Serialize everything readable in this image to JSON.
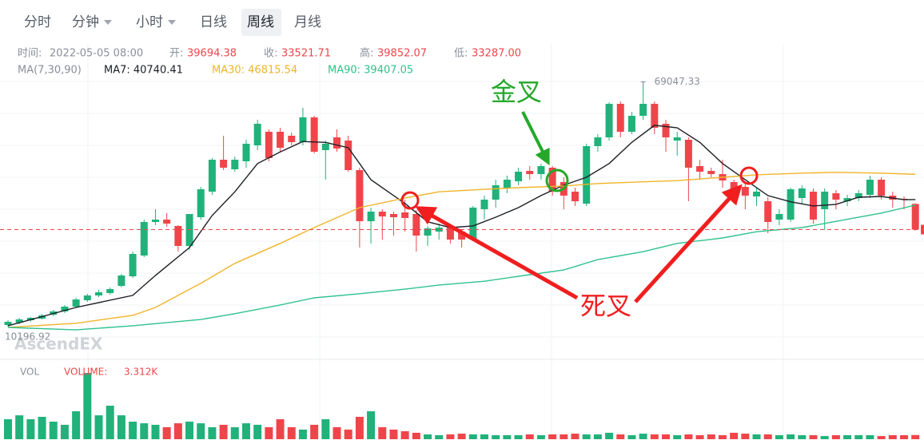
{
  "header": {
    "tabs": [
      "分时",
      "分钟",
      "小时",
      "日线",
      "周线",
      "月线"
    ],
    "active_tab": "周线",
    "dropdown_tabs": [
      "分钟",
      "小时"
    ],
    "info": [
      {
        "label": "时间:",
        "value": "2022-05-05 08:00",
        "color": "#8a8f99"
      },
      {
        "label": "开:",
        "value": "39694.38",
        "color": "#ef454a"
      },
      {
        "label": "收:",
        "value": "33521.71",
        "color": "#ef454a"
      },
      {
        "label": "高:",
        "value": "39852.07",
        "color": "#ef454a"
      },
      {
        "label": "低:",
        "value": "33287.00",
        "color": "#ef454a"
      }
    ],
    "ma_legend": {
      "label": "MA(7,30,90)",
      "items": [
        {
          "text": "MA7: 40740.41",
          "color": "#1c1f26"
        },
        {
          "text": "MA30: 46815.54",
          "color": "#f0b429"
        },
        {
          "text": "MA90: 39407.05",
          "color": "#2fc28c"
        }
      ]
    }
  },
  "chart_data": {
    "type": "candlestick",
    "watermark": "AscendEX",
    "up_color": "#20b27a",
    "down_color": "#ef454a",
    "ylim": [
      2324,
      77204
    ],
    "open": [
      10580,
      11156,
      11732,
      12116,
      13076,
      13844,
      14996,
      16532,
      17684,
      18260,
      19988,
      22292,
      27284,
      35348,
      35924,
      34388,
      29588,
      36500,
      42644,
      50324,
      48020,
      49940,
      53780,
      57044,
      57044,
      56084,
      54548,
      60500,
      52628,
      55700,
      54932,
      47828,
      35540,
      37844,
      37268,
      37652,
      37268,
      32084,
      33044,
      34004,
      33044,
      31124,
      38420,
      40724,
      43412,
      45140,
      47636,
      46868,
      48404,
      44948,
      42644,
      39764,
      53588,
      55700,
      63764,
      57044,
      60884,
      63764,
      58964,
      54932,
      55124,
      48788,
      47636,
      46868,
      44948,
      43796,
      41492,
      40340,
      35924,
      35924,
      41108,
      42644,
      38420,
      42260,
      40340,
      41108,
      41876,
      45524,
      41684,
      40940,
      39694.38
    ],
    "close": [
      11348,
      11924,
      12308,
      12884,
      13844,
      14996,
      16724,
      17684,
      18452,
      19220,
      22484,
      27668,
      35348,
      35924,
      34964,
      29588,
      37268,
      43220,
      50324,
      48404,
      50324,
      54164,
      58964,
      50708,
      53204,
      54548,
      60500,
      52244,
      54164,
      53012,
      47828,
      35540,
      37844,
      36692,
      36500,
      36308,
      32084,
      33812,
      34004,
      31124,
      31124,
      38804,
      40724,
      44180,
      45524,
      47444,
      46868,
      48788,
      42644,
      41684,
      40340,
      53588,
      55700,
      63764,
      57044,
      60884,
      63764,
      58004,
      55700,
      55700,
      48404,
      47444,
      46868,
      45332,
      42644,
      41684,
      42644,
      35348,
      37268,
      43220,
      43412,
      35924,
      42644,
      40724,
      41108,
      42260,
      45524,
      41684,
      40724,
      40724,
      33521.71
    ],
    "high": [
      11732,
      12308,
      12500,
      13268,
      14228,
      15380,
      17108,
      18068,
      19028,
      19604,
      22868,
      28244,
      35924,
      38420,
      37484,
      34580,
      37268,
      43796,
      50708,
      56084,
      51092,
      55124,
      59924,
      57620,
      58004,
      56852,
      62804,
      60884,
      54932,
      57620,
      56084,
      48404,
      38804,
      38420,
      37844,
      40724,
      38228,
      34388,
      34964,
      34580,
      33620,
      39188,
      41684,
      45524,
      46484,
      48404,
      48788,
      49364,
      48788,
      46100,
      43604,
      54164,
      56468,
      64148,
      64340,
      61844,
      69047.33,
      64340,
      59924,
      57044,
      55700,
      50324,
      48404,
      50324,
      45524,
      44948,
      43604,
      41300,
      38420,
      43604,
      44180,
      43412,
      43412,
      43028,
      41876,
      43028,
      46484,
      46100,
      42644,
      41492,
      39852.07
    ],
    "low": [
      10196.92,
      10772,
      11348,
      11924,
      12692,
      13460,
      14612,
      16148,
      17300,
      17876,
      19604,
      21908,
      26900,
      34580,
      34196,
      28244,
      28628,
      35924,
      41876,
      47828,
      47444,
      48404,
      52628,
      49940,
      52244,
      53780,
      53780,
      51860,
      45524,
      52244,
      47444,
      29204,
      30164,
      31124,
      32084,
      33044,
      28244,
      29588,
      31124,
      30164,
      29204,
      30740,
      35924,
      38804,
      42260,
      44180,
      45524,
      45524,
      41684,
      38420,
      39188,
      39188,
      52244,
      54932,
      55700,
      56468,
      59924,
      56468,
      52244,
      51284,
      40340,
      45524,
      46100,
      43604,
      41108,
      38420,
      39188,
      32660,
      34580,
      35348,
      39764,
      34964,
      33428,
      38420,
      39188,
      40340,
      41108,
      40724,
      38804,
      38420,
      33287
    ],
    "ma": [
      {
        "color": "#1c1f26",
        "x": [
          0,
          6,
          11,
          13,
          16,
          18,
          20,
          22,
          24,
          26,
          28,
          30,
          31,
          32,
          34,
          35,
          37,
          39,
          41,
          43,
          45,
          47,
          49,
          51,
          53,
          55,
          57,
          59,
          61,
          63,
          65,
          67,
          69,
          71,
          73,
          75,
          77,
          79,
          80
        ],
        "values": [
          10400,
          14800,
          17700,
          22500,
          29200,
          36900,
          42600,
          49400,
          52200,
          54700,
          54500,
          53200,
          49400,
          45500,
          41700,
          39800,
          35400,
          34000,
          34400,
          36500,
          38800,
          41700,
          44200,
          46100,
          49400,
          54500,
          58600,
          58000,
          54500,
          49400,
          45500,
          41700,
          40200,
          39200,
          39600,
          41300,
          41500,
          40700,
          40740.41
        ]
      },
      {
        "color": "#f0b429",
        "x": [
          0,
          6,
          11,
          13,
          17,
          20,
          24,
          27,
          31,
          35,
          38,
          42,
          45,
          49,
          52,
          56,
          59,
          63,
          66,
          70,
          73,
          77,
          80
        ],
        "values": [
          10000,
          11000,
          12900,
          14800,
          20600,
          25400,
          30200,
          34000,
          38800,
          41100,
          42600,
          43200,
          43600,
          44000,
          44600,
          45000,
          45300,
          46100,
          46700,
          47100,
          47300,
          47100,
          46815.54
        ]
      },
      {
        "color": "#2fc28c",
        "x": [
          0,
          6,
          11,
          17,
          20,
          24,
          27,
          31,
          35,
          38,
          42,
          45,
          49,
          52,
          56,
          59,
          63,
          66,
          70,
          73,
          77,
          80
        ],
        "values": [
          10000,
          9400,
          10400,
          11900,
          13300,
          15400,
          17100,
          18100,
          19200,
          20200,
          21100,
          22300,
          23800,
          26300,
          28200,
          30200,
          31500,
          33000,
          34000,
          35500,
          37500,
          39407.05
        ]
      }
    ],
    "volume": {
      "name": "VOL",
      "label": "VOLUME:",
      "current_label": "3.312K",
      "ylim": [
        0,
        60000
      ],
      "values": [
        15800,
        18900,
        15800,
        17700,
        13900,
        11400,
        22100,
        52400,
        18900,
        26500,
        18900,
        13900,
        12600,
        11400,
        9500,
        12600,
        13900,
        12600,
        9500,
        11400,
        9500,
        12600,
        11400,
        9500,
        15800,
        9500,
        7600,
        11400,
        15800,
        9500,
        7600,
        17700,
        22100,
        9500,
        7600,
        6300,
        5100,
        3800,
        3200,
        3800,
        4400,
        3800,
        3800,
        3200,
        3200,
        3200,
        3800,
        3200,
        3800,
        3800,
        4400,
        3800,
        3800,
        5100,
        3800,
        3200,
        4400,
        3800,
        3800,
        3200,
        3800,
        3200,
        3800,
        3200,
        5100,
        4400,
        3800,
        3800,
        3200,
        3800,
        3200,
        3200,
        2500,
        3200,
        3200,
        3200,
        3200,
        2500,
        3200,
        3200,
        3312
      ]
    },
    "annotations": {
      "golden_cross": "金叉",
      "death_cross": "死叉"
    }
  }
}
